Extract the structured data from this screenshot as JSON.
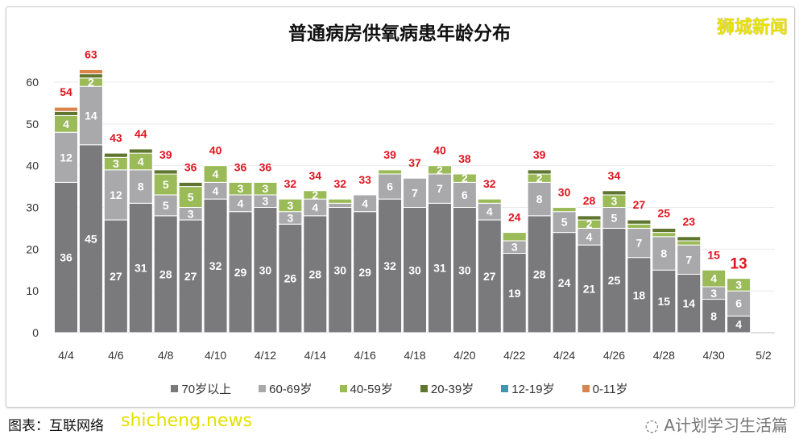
{
  "brand": "狮城新闻",
  "source_text": "图表：互联网络",
  "watermark": "shicheng.news",
  "wechat_account": "A计划学习生活篇",
  "chart_data": {
    "type": "bar",
    "stacked": true,
    "title": "普通病房供氧病患年龄分布",
    "xlabel": "",
    "ylabel": "",
    "ylim": [
      0,
      60
    ],
    "yticks": [
      0,
      10,
      20,
      30,
      40,
      50,
      60
    ],
    "grid": true,
    "legend_position": "bottom",
    "categories": [
      "4/4",
      "4/5",
      "4/6",
      "4/7",
      "4/8",
      "4/9",
      "4/10",
      "4/11",
      "4/12",
      "4/13",
      "4/14",
      "4/15",
      "4/16",
      "4/17",
      "4/18",
      "4/19",
      "4/20",
      "4/21",
      "4/22",
      "4/23",
      "4/24",
      "4/25",
      "4/26",
      "4/27",
      "4/28",
      "4/29",
      "4/30",
      "5/1"
    ],
    "xtick_labels": [
      "4/4",
      "4/6",
      "4/8",
      "4/10",
      "4/12",
      "4/14",
      "4/16",
      "4/18",
      "4/20",
      "4/22",
      "4/24",
      "4/26",
      "4/28",
      "4/30",
      "5/2"
    ],
    "series": [
      {
        "name": "70岁以上",
        "color": "#7a7a7c",
        "values": [
          36,
          45,
          27,
          31,
          28,
          27,
          32,
          29,
          30,
          26,
          28,
          30,
          29,
          32,
          30,
          31,
          30,
          27,
          19,
          28,
          24,
          21,
          25,
          18,
          15,
          14,
          8,
          4
        ]
      },
      {
        "name": "60-69岁",
        "color": "#a9a9ab",
        "values": [
          12,
          14,
          12,
          8,
          5,
          3,
          4,
          4,
          3,
          3,
          4,
          1,
          4,
          6,
          7,
          7,
          6,
          4,
          3,
          8,
          5,
          4,
          5,
          7,
          8,
          7,
          3,
          6
        ]
      },
      {
        "name": "40-59岁",
        "color": "#9bbb59",
        "values": [
          4,
          2,
          3,
          4,
          5,
          5,
          4,
          3,
          3,
          3,
          2,
          1,
          0,
          1,
          0,
          2,
          2,
          1,
          2,
          2,
          1,
          2,
          3,
          1,
          1,
          1,
          4,
          3
        ]
      },
      {
        "name": "20-39岁",
        "color": "#5f7530",
        "values": [
          1,
          1,
          1,
          1,
          1,
          1,
          0,
          0,
          0,
          0,
          0,
          0,
          0,
          0,
          0,
          0,
          0,
          0,
          0,
          1,
          0,
          1,
          1,
          1,
          1,
          1,
          0,
          0
        ]
      },
      {
        "name": "12-19岁",
        "color": "#3d97ad",
        "values": [
          0,
          0,
          0,
          0,
          0,
          0,
          0,
          0,
          0,
          0,
          0,
          0,
          0,
          0,
          0,
          0,
          0,
          0,
          0,
          0,
          0,
          0,
          0,
          0,
          0,
          0,
          0,
          0
        ]
      },
      {
        "name": "0-11岁",
        "color": "#d9844a",
        "values": [
          1,
          1,
          0,
          0,
          0,
          0,
          0,
          0,
          0,
          0,
          0,
          0,
          0,
          0,
          0,
          0,
          0,
          0,
          0,
          0,
          0,
          0,
          0,
          0,
          0,
          0,
          0,
          0
        ]
      }
    ],
    "totals": [
      54,
      63,
      43,
      44,
      39,
      36,
      40,
      36,
      36,
      32,
      34,
      32,
      33,
      39,
      37,
      40,
      38,
      32,
      24,
      39,
      30,
      28,
      34,
      27,
      25,
      23,
      15,
      13
    ],
    "total_label_color": "#e0141e"
  }
}
